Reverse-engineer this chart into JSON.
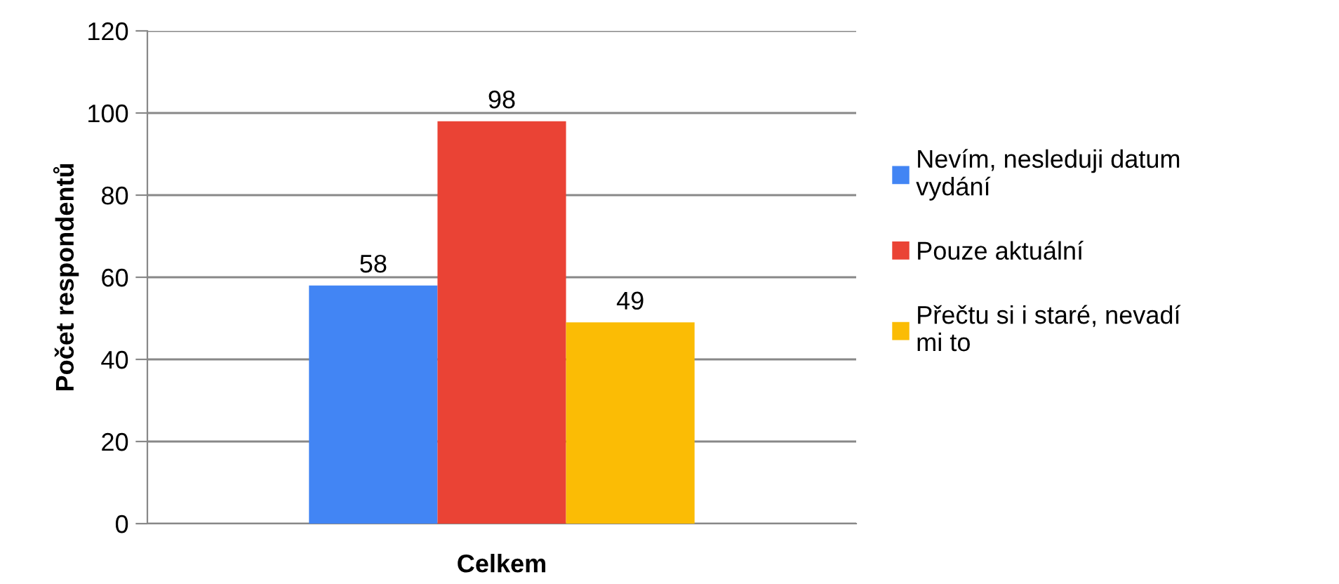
{
  "chart_data": {
    "type": "bar",
    "xlabel": "Celkem",
    "ylabel": "Počet respondentů",
    "categories": [
      null
    ],
    "series": [
      {
        "name": "Nevím, nesleduji datum\nvydání",
        "color": "#4285f4",
        "values": [
          58
        ]
      },
      {
        "name": "Pouze aktuální",
        "color": "#ea4335",
        "values": [
          98
        ]
      },
      {
        "name": "Přečtu si i staré, nevadí\nmi to",
        "color": "#fbbc05",
        "values": [
          49
        ]
      }
    ],
    "ylim": [
      0,
      120
    ],
    "yticks": [
      0,
      20,
      40,
      60,
      80,
      100,
      120
    ],
    "grid": "y",
    "legend": "right",
    "data_labels": true
  }
}
